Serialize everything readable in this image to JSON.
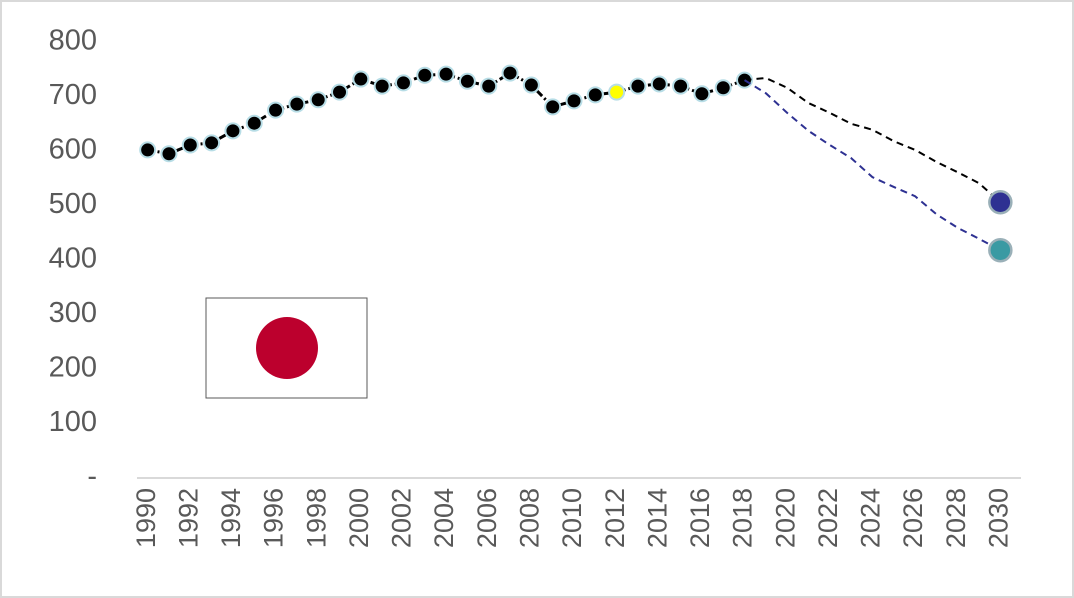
{
  "chart_data": {
    "type": "line",
    "x": [
      1990,
      1991,
      1992,
      1993,
      1994,
      1995,
      1996,
      1997,
      1998,
      1999,
      2000,
      2001,
      2002,
      2003,
      2004,
      2005,
      2006,
      2007,
      2008,
      2009,
      2010,
      2011,
      2012,
      2013,
      2014,
      2015,
      2016,
      2017,
      2018,
      2019,
      2020,
      2021,
      2022,
      2023,
      2024,
      2025,
      2026,
      2027,
      2028,
      2029,
      2030
    ],
    "xlim": [
      1989.5,
      2030.5
    ],
    "xticks": [
      1990,
      1992,
      1994,
      1996,
      1998,
      2000,
      2002,
      2004,
      2006,
      2008,
      2010,
      2012,
      2014,
      2016,
      2018,
      2020,
      2022,
      2024,
      2026,
      2028,
      2030
    ],
    "ylim": [
      0,
      800
    ],
    "yticks": [
      {
        "value": 0,
        "label": "-"
      },
      100,
      200,
      300,
      400,
      500,
      600,
      700,
      800
    ],
    "grid": false,
    "series": [
      {
        "color": "#000000",
        "marker_color": "#000000",
        "marker_edge": "#b7dde6",
        "line_style": "dashdot",
        "values": [
          602,
          595,
          611,
          615,
          637,
          651,
          675,
          686,
          694,
          708,
          732,
          719,
          725,
          739,
          741,
          728,
          719,
          743,
          721,
          681,
          692,
          703,
          708,
          719,
          723,
          719,
          705,
          716,
          730,
          null,
          null,
          null,
          null,
          null,
          null,
          null,
          null,
          null,
          null,
          null,
          null
        ],
        "highlight": {
          "x": 2012,
          "color": "#ffff00"
        }
      },
      {
        "color": "#000000",
        "line_style": "dashed",
        "end_marker_color": "#2e3192",
        "values": [
          null,
          null,
          null,
          null,
          null,
          null,
          null,
          null,
          null,
          null,
          null,
          null,
          null,
          null,
          null,
          null,
          null,
          null,
          null,
          null,
          null,
          null,
          null,
          null,
          null,
          null,
          null,
          null,
          730,
          734,
          716,
          688,
          670,
          650,
          639,
          618,
          602,
          580,
          561,
          541,
          506
        ]
      },
      {
        "color": "#2e3192",
        "line_style": "dashed",
        "end_marker_color": "#3a9aa3",
        "values": [
          null,
          null,
          null,
          null,
          null,
          null,
          null,
          null,
          null,
          null,
          null,
          null,
          null,
          null,
          null,
          null,
          null,
          null,
          null,
          null,
          null,
          null,
          null,
          null,
          null,
          null,
          null,
          null,
          730,
          706,
          670,
          637,
          611,
          587,
          552,
          534,
          517,
          484,
          459,
          439,
          418
        ]
      }
    ]
  }
}
